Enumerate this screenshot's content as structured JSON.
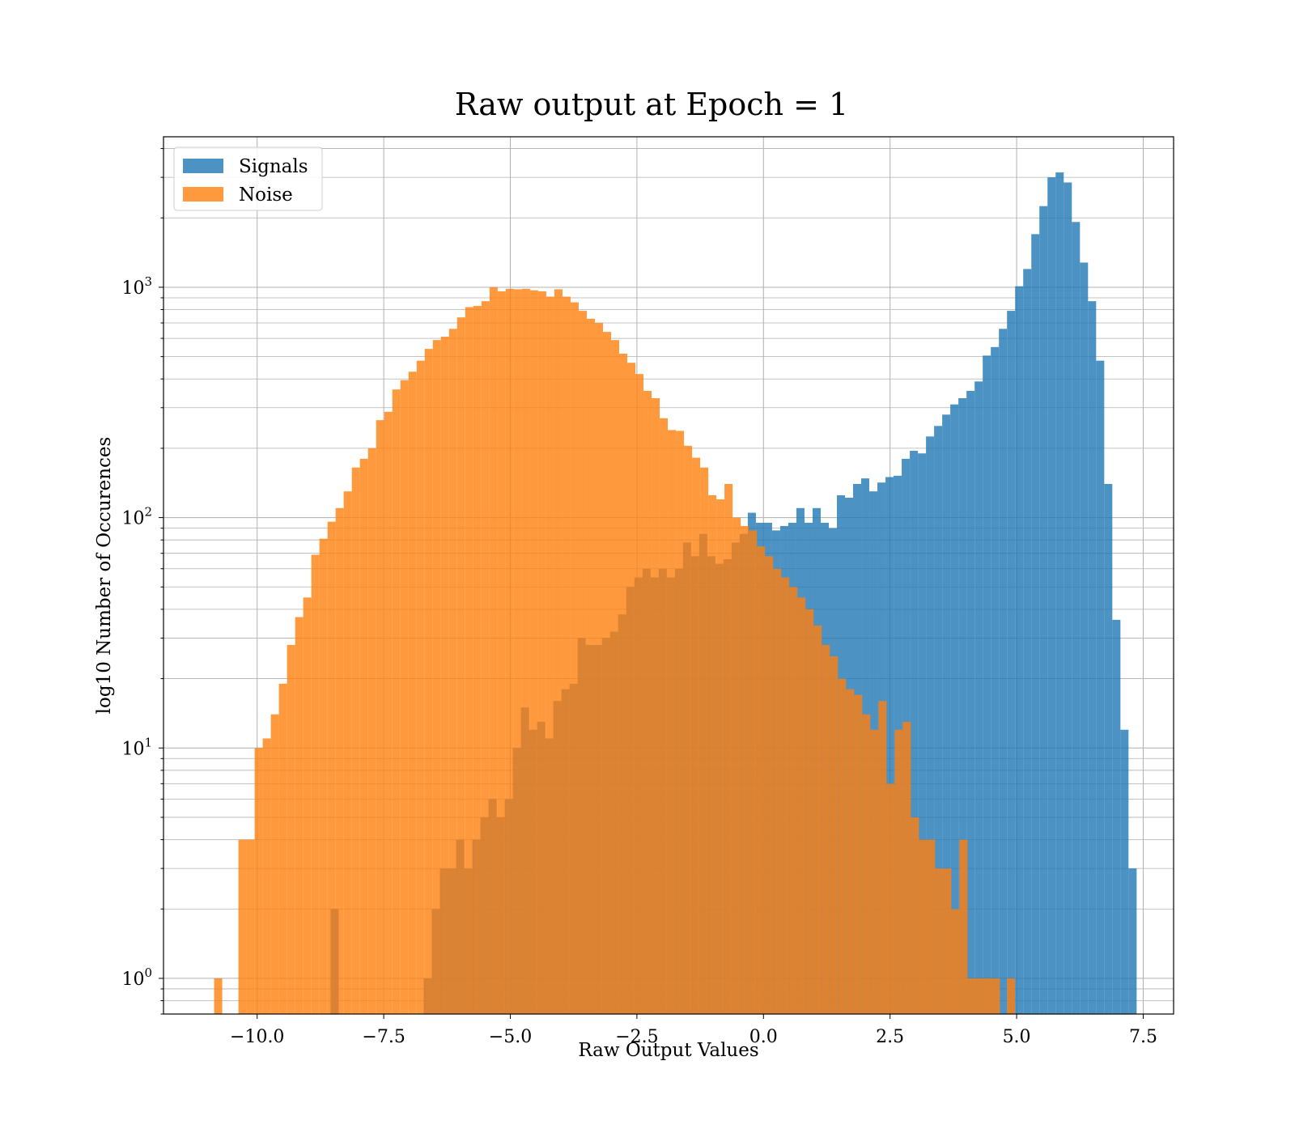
{
  "chart_data": {
    "type": "histogram",
    "title": "Raw output at Epoch = 1",
    "xlabel": "Raw Output Values",
    "ylabel": "log10 Number of Occurences",
    "yscale": "log",
    "xlim": [
      -11.85,
      8.1
    ],
    "ylim": [
      0.7,
      4500
    ],
    "grid": true,
    "legend_position": "upper-left",
    "x_ticks": [
      {
        "value": -10.0,
        "label": "−10.0"
      },
      {
        "value": -7.5,
        "label": "−7.5"
      },
      {
        "value": -5.0,
        "label": "−5.0"
      },
      {
        "value": -2.5,
        "label": "−2.5"
      },
      {
        "value": 0.0,
        "label": "0.0"
      },
      {
        "value": 2.5,
        "label": "2.5"
      },
      {
        "value": 5.0,
        "label": "5.0"
      },
      {
        "value": 7.5,
        "label": "7.5"
      }
    ],
    "y_ticks": [
      {
        "value": 1,
        "base": "10",
        "exp": "0"
      },
      {
        "value": 10,
        "base": "10",
        "exp": "1"
      },
      {
        "value": 100,
        "base": "10",
        "exp": "2"
      },
      {
        "value": 1000,
        "base": "10",
        "exp": "3"
      }
    ],
    "series": [
      {
        "name": "Signals",
        "color": "#1f77b4",
        "opacity": 0.8,
        "bins": [
          [
            -8.55,
            -8.39,
            2
          ],
          [
            -6.71,
            -6.55,
            1
          ],
          [
            -6.55,
            -6.39,
            2
          ],
          [
            -6.39,
            -6.23,
            3
          ],
          [
            -6.23,
            -6.07,
            3
          ],
          [
            -6.07,
            -5.91,
            4
          ],
          [
            -5.91,
            -5.75,
            3
          ],
          [
            -5.75,
            -5.59,
            4
          ],
          [
            -5.59,
            -5.43,
            5
          ],
          [
            -5.43,
            -5.27,
            6
          ],
          [
            -5.27,
            -5.11,
            5
          ],
          [
            -5.11,
            -4.95,
            6
          ],
          [
            -4.95,
            -4.79,
            10
          ],
          [
            -4.79,
            -4.63,
            15
          ],
          [
            -4.63,
            -4.47,
            12
          ],
          [
            -4.47,
            -4.31,
            13
          ],
          [
            -4.31,
            -4.15,
            11
          ],
          [
            -4.15,
            -3.99,
            16
          ],
          [
            -3.99,
            -3.83,
            18
          ],
          [
            -3.83,
            -3.67,
            19
          ],
          [
            -3.67,
            -3.51,
            30
          ],
          [
            -3.51,
            -3.35,
            28
          ],
          [
            -3.35,
            -3.19,
            28
          ],
          [
            -3.19,
            -3.03,
            30
          ],
          [
            -3.03,
            -2.87,
            32
          ],
          [
            -2.87,
            -2.71,
            38
          ],
          [
            -2.71,
            -2.55,
            50
          ],
          [
            -2.55,
            -2.39,
            55
          ],
          [
            -2.39,
            -2.23,
            60
          ],
          [
            -2.23,
            -2.07,
            55
          ],
          [
            -2.07,
            -1.91,
            60
          ],
          [
            -1.91,
            -1.75,
            55
          ],
          [
            -1.75,
            -1.59,
            60
          ],
          [
            -1.59,
            -1.43,
            78
          ],
          [
            -1.43,
            -1.27,
            68
          ],
          [
            -1.27,
            -1.11,
            85
          ],
          [
            -1.11,
            -0.95,
            68
          ],
          [
            -0.95,
            -0.79,
            63
          ],
          [
            -0.79,
            -0.63,
            66
          ],
          [
            -0.63,
            -0.47,
            78
          ],
          [
            -0.47,
            -0.31,
            85
          ],
          [
            -0.31,
            -0.15,
            105
          ],
          [
            -0.15,
            0.01,
            95
          ],
          [
            0.01,
            0.17,
            95
          ],
          [
            0.17,
            0.33,
            88
          ],
          [
            0.33,
            0.49,
            92
          ],
          [
            0.49,
            0.65,
            95
          ],
          [
            0.65,
            0.81,
            110
          ],
          [
            0.81,
            0.97,
            95
          ],
          [
            0.97,
            1.13,
            110
          ],
          [
            1.13,
            1.29,
            95
          ],
          [
            1.29,
            1.45,
            90
          ],
          [
            1.45,
            1.61,
            125
          ],
          [
            1.61,
            1.77,
            122
          ],
          [
            1.77,
            1.93,
            140
          ],
          [
            1.93,
            2.09,
            148
          ],
          [
            2.09,
            2.25,
            130
          ],
          [
            2.25,
            2.41,
            142
          ],
          [
            2.41,
            2.57,
            150
          ],
          [
            2.57,
            2.73,
            152
          ],
          [
            2.73,
            2.89,
            180
          ],
          [
            2.89,
            3.05,
            195
          ],
          [
            3.05,
            3.21,
            190
          ],
          [
            3.21,
            3.37,
            225
          ],
          [
            3.37,
            3.53,
            250
          ],
          [
            3.53,
            3.69,
            280
          ],
          [
            3.69,
            3.85,
            310
          ],
          [
            3.85,
            4.01,
            330
          ],
          [
            4.01,
            4.17,
            355
          ],
          [
            4.17,
            4.33,
            390
          ],
          [
            4.33,
            4.49,
            505
          ],
          [
            4.49,
            4.65,
            550
          ],
          [
            4.65,
            4.81,
            660
          ],
          [
            4.81,
            4.97,
            790
          ],
          [
            4.97,
            5.13,
            1010
          ],
          [
            5.13,
            5.29,
            1200
          ],
          [
            5.29,
            5.45,
            1700
          ],
          [
            5.45,
            5.61,
            2250
          ],
          [
            5.61,
            5.77,
            3000
          ],
          [
            5.77,
            5.93,
            3150
          ],
          [
            5.93,
            6.09,
            2850
          ],
          [
            6.09,
            6.25,
            1920
          ],
          [
            6.25,
            6.41,
            1280
          ],
          [
            6.41,
            6.57,
            870
          ],
          [
            6.57,
            6.73,
            480
          ],
          [
            6.73,
            6.89,
            140
          ],
          [
            6.89,
            7.05,
            36
          ],
          [
            7.05,
            7.21,
            12
          ],
          [
            7.21,
            7.37,
            3
          ]
        ]
      },
      {
        "name": "Noise",
        "color": "#ff7f0e",
        "opacity": 0.8,
        "bins": [
          [
            -10.85,
            -10.69,
            1
          ],
          [
            -10.37,
            -10.21,
            4
          ],
          [
            -10.21,
            -10.05,
            4
          ],
          [
            -10.05,
            -9.89,
            10
          ],
          [
            -9.89,
            -9.73,
            11
          ],
          [
            -9.73,
            -9.57,
            14
          ],
          [
            -9.57,
            -9.41,
            19
          ],
          [
            -9.41,
            -9.25,
            28
          ],
          [
            -9.25,
            -9.09,
            37
          ],
          [
            -9.09,
            -8.93,
            45
          ],
          [
            -8.93,
            -8.77,
            69
          ],
          [
            -8.77,
            -8.61,
            81
          ],
          [
            -8.61,
            -8.45,
            96
          ],
          [
            -8.45,
            -8.29,
            110
          ],
          [
            -8.29,
            -8.13,
            130
          ],
          [
            -8.13,
            -7.97,
            165
          ],
          [
            -7.97,
            -7.81,
            180
          ],
          [
            -7.81,
            -7.65,
            200
          ],
          [
            -7.65,
            -7.49,
            265
          ],
          [
            -7.49,
            -7.33,
            288
          ],
          [
            -7.33,
            -7.17,
            360
          ],
          [
            -7.17,
            -7.01,
            395
          ],
          [
            -7.01,
            -6.85,
            430
          ],
          [
            -6.85,
            -6.69,
            480
          ],
          [
            -6.69,
            -6.53,
            540
          ],
          [
            -6.53,
            -6.37,
            590
          ],
          [
            -6.37,
            -6.21,
            610
          ],
          [
            -6.21,
            -6.05,
            660
          ],
          [
            -6.05,
            -5.89,
            740
          ],
          [
            -5.89,
            -5.73,
            820
          ],
          [
            -5.73,
            -5.57,
            830
          ],
          [
            -5.57,
            -5.41,
            870
          ],
          [
            -5.41,
            -5.25,
            1000
          ],
          [
            -5.25,
            -5.09,
            960
          ],
          [
            -5.09,
            -4.93,
            985
          ],
          [
            -4.93,
            -4.77,
            980
          ],
          [
            -4.77,
            -4.61,
            985
          ],
          [
            -4.61,
            -4.45,
            970
          ],
          [
            -4.45,
            -4.29,
            960
          ],
          [
            -4.29,
            -4.13,
            910
          ],
          [
            -4.13,
            -3.97,
            980
          ],
          [
            -3.97,
            -3.81,
            910
          ],
          [
            -3.81,
            -3.65,
            860
          ],
          [
            -3.65,
            -3.49,
            790
          ],
          [
            -3.49,
            -3.33,
            730
          ],
          [
            -3.33,
            -3.17,
            700
          ],
          [
            -3.17,
            -3.01,
            640
          ],
          [
            -3.01,
            -2.85,
            590
          ],
          [
            -2.85,
            -2.69,
            515
          ],
          [
            -2.69,
            -2.53,
            470
          ],
          [
            -2.53,
            -2.37,
            420
          ],
          [
            -2.37,
            -2.21,
            355
          ],
          [
            -2.21,
            -2.05,
            330
          ],
          [
            -2.05,
            -1.89,
            270
          ],
          [
            -1.89,
            -1.73,
            240
          ],
          [
            -1.73,
            -1.57,
            238
          ],
          [
            -1.57,
            -1.41,
            205
          ],
          [
            -1.41,
            -1.25,
            182
          ],
          [
            -1.25,
            -1.09,
            165
          ],
          [
            -1.09,
            -0.93,
            125
          ],
          [
            -0.93,
            -0.77,
            120
          ],
          [
            -0.77,
            -0.61,
            140
          ],
          [
            -0.61,
            -0.45,
            100
          ],
          [
            -0.45,
            -0.29,
            92
          ],
          [
            -0.29,
            -0.13,
            88
          ],
          [
            -0.13,
            0.03,
            75
          ],
          [
            0.03,
            0.19,
            68
          ],
          [
            0.19,
            0.35,
            60
          ],
          [
            0.35,
            0.51,
            55
          ],
          [
            0.51,
            0.67,
            50
          ],
          [
            0.67,
            0.83,
            45
          ],
          [
            0.83,
            0.99,
            40
          ],
          [
            0.99,
            1.15,
            34
          ],
          [
            1.15,
            1.31,
            28
          ],
          [
            1.31,
            1.47,
            25
          ],
          [
            1.47,
            1.63,
            20
          ],
          [
            1.63,
            1.79,
            18
          ],
          [
            1.79,
            1.95,
            17
          ],
          [
            1.95,
            2.11,
            14
          ],
          [
            2.11,
            2.27,
            12
          ],
          [
            2.27,
            2.43,
            16
          ],
          [
            2.43,
            2.59,
            7
          ],
          [
            2.59,
            2.75,
            12
          ],
          [
            2.75,
            2.91,
            13
          ],
          [
            2.91,
            3.07,
            5
          ],
          [
            3.07,
            3.23,
            4
          ],
          [
            3.23,
            3.39,
            4
          ],
          [
            3.39,
            3.55,
            3
          ],
          [
            3.55,
            3.71,
            3
          ],
          [
            3.71,
            3.87,
            2
          ],
          [
            3.87,
            4.03,
            4
          ],
          [
            4.03,
            4.19,
            1
          ],
          [
            4.19,
            4.35,
            1
          ],
          [
            4.35,
            4.51,
            1
          ],
          [
            4.51,
            4.67,
            1
          ],
          [
            4.81,
            4.97,
            1
          ]
        ]
      }
    ]
  }
}
